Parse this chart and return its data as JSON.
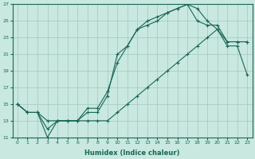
{
  "xlabel": "Humidex (Indice chaleur)",
  "xlim": [
    -0.5,
    23.5
  ],
  "ylim": [
    11,
    27
  ],
  "yticks": [
    11,
    13,
    15,
    17,
    19,
    21,
    23,
    25,
    27
  ],
  "xticks": [
    0,
    1,
    2,
    3,
    4,
    5,
    6,
    7,
    8,
    9,
    10,
    11,
    12,
    13,
    14,
    15,
    16,
    17,
    18,
    19,
    20,
    21,
    22,
    23
  ],
  "background_color": "#c8e8e0",
  "grid_color": "#a0c8be",
  "line_color": "#1a6655",
  "line1_x": [
    0,
    1,
    2,
    3,
    4,
    5,
    6,
    7,
    8,
    9,
    10,
    11,
    12,
    13,
    14,
    15,
    16,
    17,
    18,
    19,
    20,
    21,
    22,
    23
  ],
  "line1_y": [
    15,
    14,
    14,
    13,
    13,
    13,
    13,
    14,
    14,
    16,
    21,
    22,
    24,
    24.5,
    25,
    26,
    26.5,
    27,
    26.5,
    25,
    24,
    22.5,
    22.5,
    22.5
  ],
  "line2_x": [
    0,
    1,
    2,
    3,
    4,
    5,
    6,
    7,
    8,
    9,
    10,
    11,
    12,
    13,
    14,
    15,
    16,
    17,
    18,
    19,
    20,
    21,
    22,
    23
  ],
  "line2_y": [
    15,
    14,
    14,
    11,
    13,
    13,
    13,
    13,
    13,
    13,
    14,
    15,
    16,
    17,
    18,
    19,
    20,
    21,
    22,
    23,
    24,
    22,
    22,
    18.5
  ],
  "line3_x": [
    0,
    1,
    2,
    3,
    4,
    5,
    6,
    7,
    8,
    9,
    10,
    11,
    12,
    13,
    14,
    15,
    16,
    17,
    18,
    19,
    20,
    21,
    22,
    23
  ],
  "line3_y": [
    15,
    14,
    14,
    12,
    13,
    13,
    13,
    14.5,
    14.5,
    16.5,
    20,
    22,
    24,
    25,
    25.5,
    26,
    26.5,
    27,
    25,
    24.5,
    24.5,
    22.5,
    22.5,
    22.5
  ]
}
